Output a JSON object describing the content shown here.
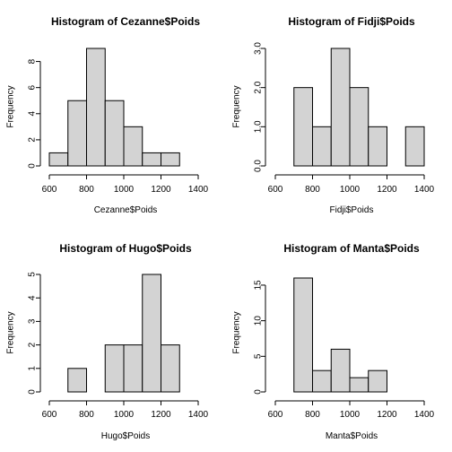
{
  "chart_data": [
    {
      "type": "bar",
      "title": "Histogram of Cezanne$Poids",
      "xlabel": "Cezanne$Poids",
      "ylabel": "Frequency",
      "bin_edges": [
        600,
        700,
        800,
        900,
        1000,
        1100,
        1200,
        1300
      ],
      "values": [
        1,
        5,
        9,
        5,
        3,
        1,
        1
      ],
      "xlim": [
        600,
        1400
      ],
      "ylim": [
        0,
        9
      ],
      "x_ticks": [
        600,
        800,
        1000,
        1200,
        1400
      ],
      "y_ticks": [
        0,
        2,
        4,
        6,
        8
      ],
      "y_tick_labels": [
        "0",
        "2",
        "4",
        "6",
        "8"
      ],
      "x_tick_labels": [
        "600",
        "800",
        "1000",
        "1200",
        "1400"
      ]
    },
    {
      "type": "bar",
      "title": "Histogram of Fidji$Poids",
      "xlabel": "Fidji$Poids",
      "ylabel": "Frequency",
      "bin_edges": [
        700,
        800,
        900,
        1000,
        1100,
        1200,
        1300,
        1400
      ],
      "values": [
        2,
        1,
        3,
        2,
        1,
        0,
        1
      ],
      "xlim": [
        600,
        1400
      ],
      "ylim": [
        0,
        3
      ],
      "x_ticks": [
        600,
        800,
        1000,
        1200,
        1400
      ],
      "y_ticks": [
        0,
        1,
        2,
        3
      ],
      "y_tick_labels": [
        "0.0",
        "1.0",
        "2.0",
        "3.0"
      ],
      "x_tick_labels": [
        "600",
        "800",
        "1000",
        "1200",
        "1400"
      ]
    },
    {
      "type": "bar",
      "title": "Histogram of Hugo$Poids",
      "xlabel": "Hugo$Poids",
      "ylabel": "Frequency",
      "bin_edges": [
        700,
        800,
        900,
        1000,
        1100,
        1200,
        1300
      ],
      "values": [
        1,
        0,
        2,
        2,
        5,
        2
      ],
      "xlim": [
        600,
        1400
      ],
      "ylim": [
        0,
        5
      ],
      "x_ticks": [
        600,
        800,
        1000,
        1200,
        1400
      ],
      "y_ticks": [
        0,
        1,
        2,
        3,
        4,
        5
      ],
      "y_tick_labels": [
        "0",
        "1",
        "2",
        "3",
        "4",
        "5"
      ],
      "x_tick_labels": [
        "600",
        "800",
        "1000",
        "1200",
        "1400"
      ]
    },
    {
      "type": "bar",
      "title": "Histogram of Manta$Poids",
      "xlabel": "Manta$Poids",
      "ylabel": "Frequency",
      "bin_edges": [
        700,
        800,
        900,
        1000,
        1100,
        1200
      ],
      "values": [
        16,
        3,
        6,
        2,
        3
      ],
      "xlim": [
        600,
        1400
      ],
      "ylim": [
        0,
        16
      ],
      "x_ticks": [
        600,
        800,
        1000,
        1200,
        1400
      ],
      "y_ticks": [
        0,
        5,
        10,
        15
      ],
      "y_tick_labels": [
        "0",
        "5",
        "10",
        "15"
      ],
      "x_tick_labels": [
        "600",
        "800",
        "1000",
        "1200",
        "1400"
      ]
    }
  ]
}
